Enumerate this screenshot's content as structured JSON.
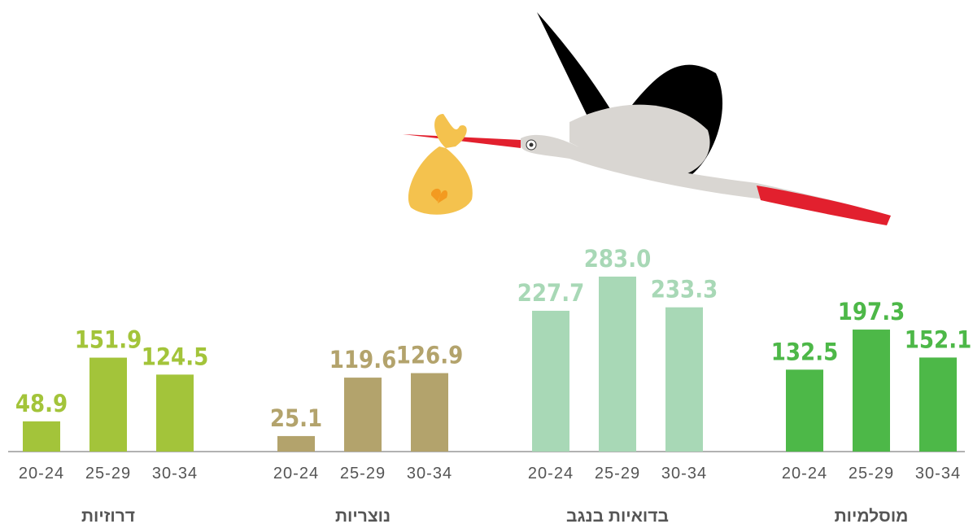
{
  "chart_data": {
    "type": "bar",
    "groups": [
      {
        "name": "דרוזיות",
        "color": "#a3c43a",
        "categories": [
          "20-24",
          "25-29",
          "30-34"
        ],
        "values": [
          48.9,
          151.9,
          124.5
        ]
      },
      {
        "name": "נוצריות",
        "color": "#b3a36c",
        "categories": [
          "20-24",
          "25-29",
          "30-34"
        ],
        "values": [
          25.1,
          119.6,
          126.9
        ]
      },
      {
        "name": "בדואיות בנגב",
        "color": "#a8d8b6",
        "categories": [
          "20-24",
          "25-29",
          "30-34"
        ],
        "values": [
          227.7,
          283,
          233.3
        ],
        "value_labels": [
          "227.7",
          "283.0",
          "233.3"
        ]
      },
      {
        "name": "מוסלמיות",
        "color": "#4db848",
        "categories": [
          "20-24",
          "25-29",
          "30-34"
        ],
        "values": [
          132.5,
          197.3,
          152.1
        ]
      }
    ]
  }
}
